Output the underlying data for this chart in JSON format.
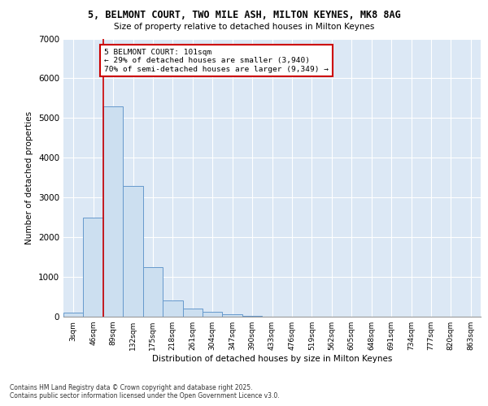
{
  "title_line1": "5, BELMONT COURT, TWO MILE ASH, MILTON KEYNES, MK8 8AG",
  "title_line2": "Size of property relative to detached houses in Milton Keynes",
  "xlabel": "Distribution of detached houses by size in Milton Keynes",
  "ylabel": "Number of detached properties",
  "categories": [
    "3sqm",
    "46sqm",
    "89sqm",
    "132sqm",
    "175sqm",
    "218sqm",
    "261sqm",
    "304sqm",
    "347sqm",
    "390sqm",
    "433sqm",
    "476sqm",
    "519sqm",
    "562sqm",
    "605sqm",
    "648sqm",
    "691sqm",
    "734sqm",
    "777sqm",
    "820sqm",
    "863sqm"
  ],
  "values": [
    100,
    2500,
    5300,
    3300,
    1250,
    400,
    200,
    130,
    70,
    30,
    10,
    5,
    2,
    1,
    0,
    0,
    0,
    0,
    0,
    0,
    0
  ],
  "bar_color": "#ccdff0",
  "bar_edge_color": "#6699cc",
  "background_color": "#dce8f5",
  "grid_color": "#ffffff",
  "vline_color": "#cc0000",
  "annotation_text": "5 BELMONT COURT: 101sqm\n← 29% of detached houses are smaller (3,940)\n70% of semi-detached houses are larger (9,349) →",
  "annotation_box_color": "#ffffff",
  "annotation_edge_color": "#cc0000",
  "footer_text": "Contains HM Land Registry data © Crown copyright and database right 2025.\nContains public sector information licensed under the Open Government Licence v3.0.",
  "ylim": [
    0,
    7000
  ],
  "yticks": [
    0,
    1000,
    2000,
    3000,
    4000,
    5000,
    6000,
    7000
  ]
}
